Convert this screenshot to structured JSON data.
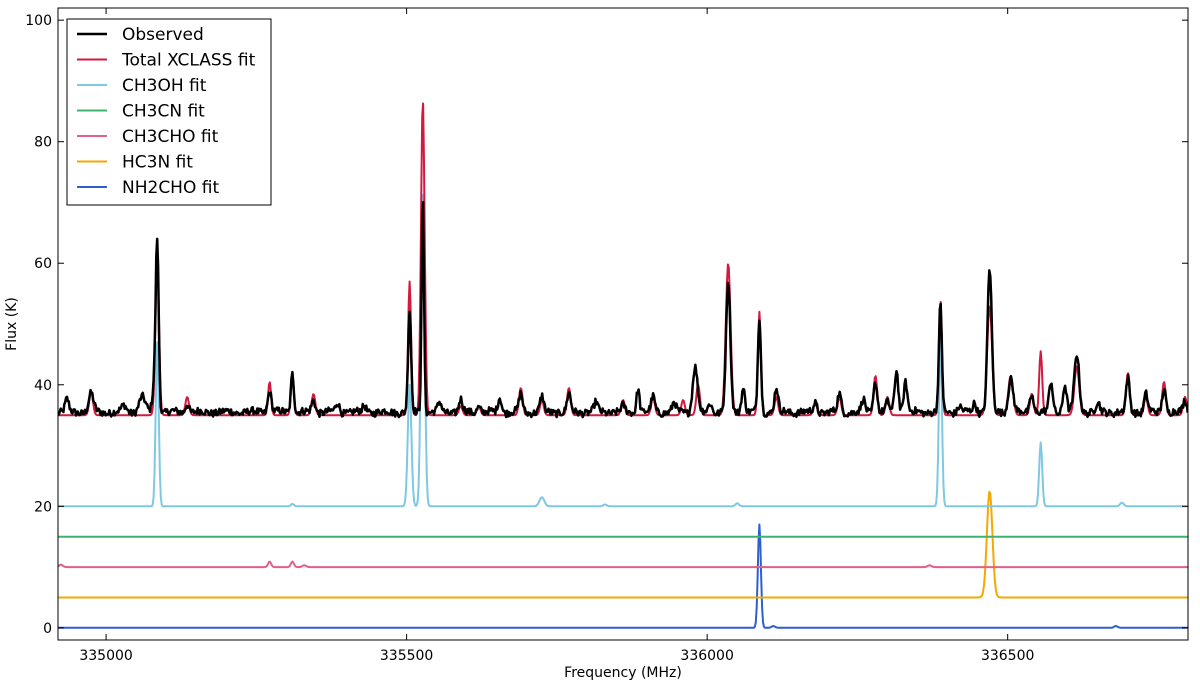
{
  "chart_data": {
    "type": "line",
    "xlabel": "Frequency (MHz)",
    "ylabel": "Flux (K)",
    "xlim": [
      334920,
      336800
    ],
    "ylim": [
      -2,
      102
    ],
    "xticks": [
      335000,
      335500,
      336000,
      336500
    ],
    "xtick_labels": [
      "335000",
      "335500",
      "336000",
      "336500"
    ],
    "yticks": [
      0,
      20,
      40,
      60,
      80,
      100
    ],
    "ytick_labels": [
      "0",
      "20",
      "40",
      "60",
      "80",
      "100"
    ],
    "grid": false,
    "legend_position": "top-left",
    "series": [
      {
        "name": "Observed",
        "color": "#000000",
        "stroke_width": 2.5,
        "baseline": 35.5,
        "noise": 0.6,
        "peaks": [
          [
            334935,
            37.5,
            3
          ],
          [
            334975,
            38.5,
            4
          ],
          [
            335030,
            36.5,
            4
          ],
          [
            335060,
            38,
            5
          ],
          [
            335080,
            39.5,
            3
          ],
          [
            335085,
            63.5,
            2.5
          ],
          [
            335135,
            37,
            3
          ],
          [
            335272,
            39,
            3
          ],
          [
            335310,
            42,
            2.5
          ],
          [
            335345,
            37.5,
            3
          ],
          [
            335385,
            37,
            3
          ],
          [
            335430,
            36.5,
            3
          ],
          [
            335505,
            52,
            2.5
          ],
          [
            335527,
            71,
            2
          ],
          [
            335555,
            37,
            3
          ],
          [
            335590,
            37.5,
            3
          ],
          [
            335620,
            36.5,
            3
          ],
          [
            335655,
            38,
            3
          ],
          [
            335690,
            38.5,
            3
          ],
          [
            335725,
            38,
            3
          ],
          [
            335770,
            38.5,
            3
          ],
          [
            335815,
            37,
            3
          ],
          [
            335860,
            36.5,
            3
          ],
          [
            335885,
            39.5,
            2.5
          ],
          [
            335910,
            38,
            3
          ],
          [
            335945,
            37,
            3
          ],
          [
            335980,
            43,
            4
          ],
          [
            336005,
            37,
            3
          ],
          [
            336035,
            57,
            3.5
          ],
          [
            336060,
            39.5,
            3
          ],
          [
            336087,
            51,
            2.5
          ],
          [
            336115,
            39.5,
            3
          ],
          [
            336180,
            37,
            3
          ],
          [
            336220,
            38.5,
            3
          ],
          [
            336260,
            37.5,
            3
          ],
          [
            336280,
            40.5,
            3
          ],
          [
            336300,
            37,
            3
          ],
          [
            336315,
            42.5,
            3
          ],
          [
            336330,
            40.5,
            3
          ],
          [
            336388,
            53,
            2.5
          ],
          [
            336420,
            36.5,
            3
          ],
          [
            336445,
            37,
            3
          ],
          [
            336470,
            59,
            3.5
          ],
          [
            336505,
            41,
            4
          ],
          [
            336540,
            38.5,
            3
          ],
          [
            336572,
            40.5,
            3
          ],
          [
            336595,
            40,
            3
          ],
          [
            336615,
            45,
            4
          ],
          [
            336650,
            37,
            3
          ],
          [
            336700,
            41,
            3
          ],
          [
            336730,
            38.5,
            3
          ],
          [
            336760,
            39.5,
            3
          ],
          [
            336795,
            37.5,
            3
          ]
        ]
      },
      {
        "name": "Total XCLASS fit",
        "color": "#d2193f",
        "stroke_width": 2,
        "baseline": 35,
        "noise": 0,
        "peaks": [
          [
            334975,
            39,
            3
          ],
          [
            335085,
            60.5,
            3
          ],
          [
            335135,
            38,
            3
          ],
          [
            335272,
            40.5,
            2.5
          ],
          [
            335310,
            41.5,
            2.5
          ],
          [
            335345,
            38.5,
            3
          ],
          [
            335505,
            57,
            2.5
          ],
          [
            335527,
            87,
            3
          ],
          [
            335590,
            36.5,
            3
          ],
          [
            335620,
            36.5,
            3
          ],
          [
            335690,
            39.5,
            3
          ],
          [
            335725,
            37.5,
            3
          ],
          [
            335770,
            39.5,
            3
          ],
          [
            335860,
            37.5,
            3
          ],
          [
            335910,
            38,
            3
          ],
          [
            335960,
            37.5,
            3
          ],
          [
            335985,
            40,
            3
          ],
          [
            336035,
            60,
            4
          ],
          [
            336087,
            52,
            2.5
          ],
          [
            336115,
            38,
            3
          ],
          [
            336180,
            37,
            3
          ],
          [
            336220,
            38,
            3
          ],
          [
            336280,
            41.5,
            3
          ],
          [
            336300,
            38,
            3
          ],
          [
            336388,
            54,
            2.5
          ],
          [
            336470,
            53,
            4
          ],
          [
            336505,
            41.5,
            4
          ],
          [
            336540,
            38.5,
            3
          ],
          [
            336555,
            45.5,
            2.5
          ],
          [
            336615,
            43,
            4
          ],
          [
            336700,
            42,
            3
          ],
          [
            336730,
            38,
            3
          ],
          [
            336760,
            40.5,
            3
          ],
          [
            336795,
            38,
            3
          ]
        ]
      },
      {
        "name": "CH3OH fit",
        "color": "#7ec8e3",
        "stroke_width": 2,
        "baseline": 20,
        "noise": 0,
        "peaks": [
          [
            335085,
            47,
            2.5
          ],
          [
            335310,
            20.4,
            2.5
          ],
          [
            335505,
            40,
            3
          ],
          [
            335527,
            72,
            3
          ],
          [
            335725,
            21.5,
            4
          ],
          [
            335830,
            20.3,
            3
          ],
          [
            336050,
            20.5,
            3
          ],
          [
            336388,
            48,
            2.5
          ],
          [
            336555,
            30.5,
            2.5
          ],
          [
            336690,
            20.6,
            3
          ]
        ]
      },
      {
        "name": "CH3CN fit",
        "color": "#3cb371",
        "stroke_width": 2,
        "baseline": 15,
        "noise": 0,
        "peaks": []
      },
      {
        "name": "CH3CHO fit",
        "color": "#e0608a",
        "stroke_width": 2,
        "baseline": 10,
        "noise": 0,
        "peaks": [
          [
            334925,
            10.4,
            3
          ],
          [
            335272,
            10.9,
            2.5
          ],
          [
            335310,
            10.9,
            2.5
          ],
          [
            335330,
            10.3,
            3
          ],
          [
            336370,
            10.3,
            3
          ]
        ]
      },
      {
        "name": "HC3N fit",
        "color": "#f5a800",
        "stroke_width": 2,
        "baseline": 5,
        "noise": 0,
        "peaks": [
          [
            336470,
            22.5,
            4.5
          ]
        ]
      },
      {
        "name": "NH2CHO fit",
        "color": "#2e5fd1",
        "stroke_width": 2,
        "baseline": 0,
        "noise": 0,
        "peaks": [
          [
            336087,
            17,
            2.5
          ],
          [
            336110,
            0.3,
            3
          ],
          [
            336680,
            0.3,
            3
          ]
        ]
      }
    ]
  }
}
